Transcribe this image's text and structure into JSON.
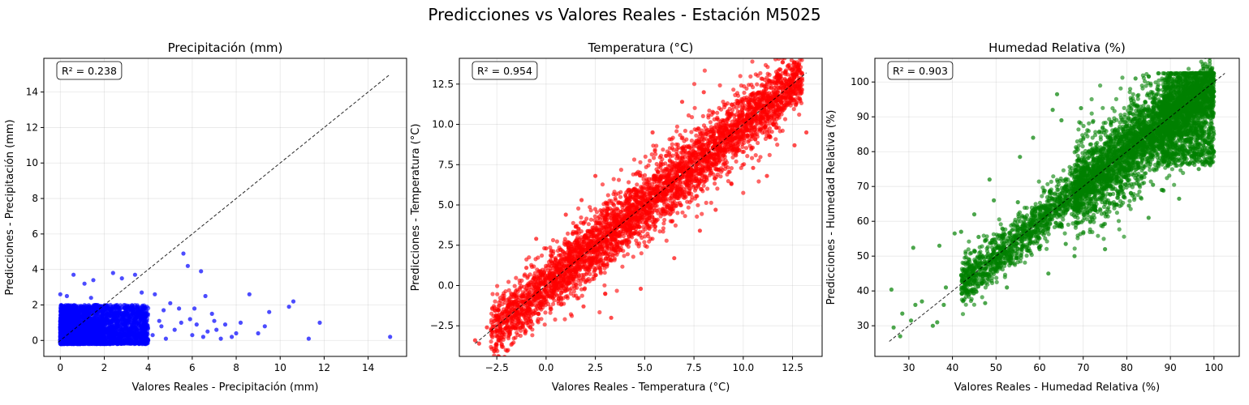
{
  "figure": {
    "suptitle": "Predicciones vs Valores Reales - Estación M5025"
  },
  "chart_data": [
    {
      "type": "scatter",
      "title": "Precipitación (mm)",
      "xlabel": "Valores Reales - Precipitación (mm)",
      "ylabel": "Predicciones - Precipitación (mm)",
      "annotation": "R² = 0.238",
      "color": "#0000ff",
      "xlim": [
        -0.75,
        15.75
      ],
      "ylim": [
        -0.9,
        15.9
      ],
      "xticks": [
        0,
        2,
        4,
        6,
        8,
        10,
        12,
        14
      ],
      "yticks": [
        0,
        2,
        4,
        6,
        8,
        10,
        12,
        14
      ],
      "xtick_labels": [
        "0",
        "2",
        "4",
        "6",
        "8",
        "10",
        "12",
        "14"
      ],
      "ytick_labels": [
        "0",
        "2",
        "4",
        "6",
        "8",
        "10",
        "12",
        "14"
      ],
      "identity_line": [
        -0.1,
        15
      ],
      "grid": true,
      "points": [
        [
          0,
          2.6
        ],
        [
          0.3,
          2.5
        ],
        [
          0.6,
          3.7
        ],
        [
          1.1,
          3.2
        ],
        [
          1.5,
          3.4
        ],
        [
          1.4,
          2.4
        ],
        [
          2.4,
          3.8
        ],
        [
          2.8,
          3.5
        ],
        [
          3.4,
          3.7
        ],
        [
          3.7,
          2.7
        ],
        [
          4.3,
          2.6
        ],
        [
          4.7,
          1.7
        ],
        [
          5.0,
          2.1
        ],
        [
          5.4,
          1.8
        ],
        [
          5.6,
          4.9
        ],
        [
          5.8,
          4.2
        ],
        [
          6.1,
          1.8
        ],
        [
          6.4,
          3.9
        ],
        [
          6.6,
          2.5
        ],
        [
          6.9,
          1.5
        ],
        [
          7.1,
          0.6
        ],
        [
          7.5,
          0.9
        ],
        [
          7.8,
          0.2
        ],
        [
          8.2,
          1.0
        ],
        [
          8.6,
          2.6
        ],
        [
          9.0,
          0.4
        ],
        [
          9.3,
          0.8
        ],
        [
          9.5,
          1.6
        ],
        [
          10.6,
          2.2
        ],
        [
          10.4,
          1.9
        ],
        [
          11.3,
          0.1
        ],
        [
          11.8,
          1.0
        ],
        [
          15.0,
          0.2
        ],
        [
          4.2,
          0.3
        ],
        [
          4.8,
          0.1
        ],
        [
          5.2,
          0.6
        ],
        [
          6.0,
          0.3
        ],
        [
          6.7,
          0.5
        ],
        [
          7.3,
          0.1
        ],
        [
          8.0,
          0.4
        ],
        [
          4.5,
          1.1
        ],
        [
          5.9,
          1.2
        ],
        [
          3.9,
          1.5
        ],
        [
          6.2,
          0.9
        ],
        [
          7.0,
          1.1
        ],
        [
          4.6,
          0.8
        ],
        [
          5.5,
          1.0
        ],
        [
          6.5,
          0.2
        ]
      ],
      "dense_clusters": [
        {
          "x": [
            0,
            4
          ],
          "y": [
            -0.2,
            2.0
          ],
          "n": 2600
        },
        {
          "x": [
            0,
            2
          ],
          "y": [
            -0.2,
            1.0
          ],
          "n": 1400
        }
      ]
    },
    {
      "type": "scatter",
      "title": "Temperatura (°C)",
      "xlabel": "Valores Reales - Temperatura (°C)",
      "ylabel": "Predicciones - Temperatura (°C)",
      "annotation": "R² = 0.954",
      "color": "#ff0000",
      "xlim": [
        -4.4,
        14.0
      ],
      "ylim": [
        -4.4,
        14.1
      ],
      "xticks": [
        -2.5,
        0.0,
        2.5,
        5.0,
        7.5,
        10.0,
        12.5
      ],
      "yticks": [
        -2.5,
        0.0,
        2.5,
        5.0,
        7.5,
        10.0,
        12.5
      ],
      "xtick_labels": [
        "−2.5",
        "0.0",
        "2.5",
        "5.0",
        "7.5",
        "10.0",
        "12.5"
      ],
      "ytick_labels": [
        "−2.5",
        "0.0",
        "2.5",
        "5.0",
        "7.5",
        "10.0",
        "12.5"
      ],
      "identity_line": [
        -3.6,
        13.2
      ],
      "grid": true,
      "points": [
        [
          -3.6,
          -3.4
        ],
        [
          -3.4,
          -3.6
        ],
        [
          -3.0,
          -2.6
        ],
        [
          -2.2,
          -2.9
        ],
        [
          -1.9,
          -1.2
        ],
        [
          -1.0,
          1.1
        ],
        [
          0.0,
          2.3
        ],
        [
          1.8,
          5.3
        ],
        [
          1.9,
          -1.3
        ],
        [
          3.3,
          -2.0
        ],
        [
          4.8,
          -0.2
        ],
        [
          5.4,
          9.5
        ],
        [
          6.5,
          1.7
        ],
        [
          6.9,
          11.4
        ],
        [
          8.6,
          4.7
        ],
        [
          9.4,
          6.3
        ],
        [
          11.2,
          6.8
        ],
        [
          12.6,
          8.7
        ],
        [
          13.2,
          9.5
        ],
        [
          12.9,
          11.9
        ],
        [
          10.5,
          7.3
        ],
        [
          7.8,
          3.4
        ],
        [
          2.5,
          6.8
        ],
        [
          1.0,
          4.4
        ],
        [
          -0.5,
          2.9
        ],
        [
          8.0,
          12.0
        ]
      ],
      "dense_clusters": [
        {
          "diag": true,
          "x": [
            -2.8,
            13.0
          ],
          "spread": 0.9,
          "n": 3500
        },
        {
          "diag": true,
          "x": [
            1.0,
            12.0
          ],
          "spread": 1.4,
          "n": 900
        }
      ]
    },
    {
      "type": "scatter",
      "title": "Humedad Relativa (%)",
      "xlabel": "Valores Reales - Humedad Relativa (%)",
      "ylabel": "Predicciones - Humedad Relativa (%)",
      "annotation": "R² = 0.903",
      "color": "#008000",
      "xlim": [
        22.2,
        105.8
      ],
      "ylim": [
        21.2,
        106.8
      ],
      "xticks": [
        30,
        40,
        50,
        60,
        70,
        80,
        90,
        100
      ],
      "yticks": [
        30,
        40,
        50,
        60,
        70,
        80,
        90,
        100
      ],
      "xtick_labels": [
        "30",
        "40",
        "50",
        "60",
        "70",
        "80",
        "90",
        "100"
      ],
      "ytick_labels": [
        "30",
        "40",
        "50",
        "60",
        "70",
        "80",
        "90",
        "100"
      ],
      "identity_line": [
        25.5,
        102.5
      ],
      "grid": true,
      "points": [
        [
          26,
          40.4
        ],
        [
          26.5,
          29.5
        ],
        [
          28.0,
          27.0
        ],
        [
          28.5,
          33.5
        ],
        [
          30.5,
          31.5
        ],
        [
          31.0,
          52.4
        ],
        [
          31.5,
          36.0
        ],
        [
          33.0,
          37.0
        ],
        [
          35.5,
          30.0
        ],
        [
          36.5,
          31.0
        ],
        [
          37.0,
          53.0
        ],
        [
          38.0,
          36.0
        ],
        [
          38.5,
          41.0
        ],
        [
          40.5,
          56.5
        ],
        [
          42.0,
          57.0
        ],
        [
          45.0,
          62.0
        ],
        [
          46.0,
          55.5
        ],
        [
          47.5,
          36.5
        ],
        [
          48.5,
          72.0
        ],
        [
          49.5,
          66.0
        ],
        [
          51.0,
          48.0
        ],
        [
          52.5,
          41.0
        ],
        [
          55.0,
          65.5
        ],
        [
          55.5,
          78.5
        ],
        [
          58.5,
          84.0
        ],
        [
          60.0,
          52.0
        ],
        [
          62.0,
          45.0
        ],
        [
          63.0,
          92.0
        ],
        [
          64.0,
          96.5
        ],
        [
          65.0,
          89.0
        ],
        [
          66.0,
          53.5
        ],
        [
          68.0,
          50.0
        ],
        [
          69.5,
          92.5
        ],
        [
          75.0,
          52.0
        ],
        [
          75.0,
          65.5
        ],
        [
          80.5,
          64.5
        ],
        [
          82.0,
          101.0
        ],
        [
          85.0,
          61.0
        ],
        [
          86.0,
          70.5
        ],
        [
          88.0,
          69.0
        ],
        [
          92.0,
          66.5
        ],
        [
          94.5,
          97.5
        ],
        [
          96.5,
          75.0
        ],
        [
          100.0,
          80.0
        ],
        [
          99.5,
          102.5
        ]
      ],
      "dense_clusters": [
        {
          "diag": true,
          "x": [
            42,
            100
          ],
          "spread": 3.5,
          "n": 2600
        },
        {
          "diag": true,
          "x": [
            68,
            100
          ],
          "spread": 7.0,
          "n": 2200,
          "clip": [
            25,
            102.5
          ]
        },
        {
          "band": true,
          "x": [
            88,
            100
          ],
          "y": [
            76,
            102.5
          ],
          "n": 900
        }
      ]
    }
  ]
}
